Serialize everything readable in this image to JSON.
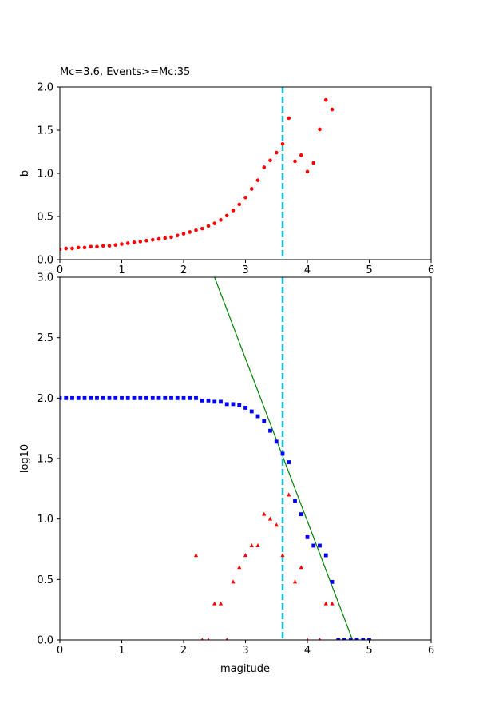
{
  "colors": {
    "axis": "#000000",
    "mc_line": "#17becf",
    "b_points": "#ff0000",
    "cum_points": "#0000ff",
    "noncum_points": "#ff0000",
    "fit_line": "#008000"
  },
  "chart_data": [
    {
      "type": "scatter",
      "title": "Mc=3.6, Events>=Mc:35",
      "xlabel": "",
      "ylabel": "b",
      "xlim": [
        0,
        6
      ],
      "ylim": [
        0,
        2
      ],
      "xticks": [
        "0",
        "1",
        "2",
        "3",
        "4",
        "5",
        "6"
      ],
      "yticks": [
        "0.0",
        "0.5",
        "1.0",
        "1.5",
        "2.0"
      ],
      "mc_line_x": 3.6,
      "series": [
        {
          "marker": "circle",
          "x": [
            0.0,
            0.1,
            0.2,
            0.3,
            0.4,
            0.5,
            0.6,
            0.7,
            0.8,
            0.9,
            1.0,
            1.1,
            1.2,
            1.3,
            1.4,
            1.5,
            1.6,
            1.7,
            1.8,
            1.9,
            2.0,
            2.1,
            2.2,
            2.3,
            2.4,
            2.5,
            2.6,
            2.7,
            2.8,
            2.9,
            3.0,
            3.1,
            3.2,
            3.3,
            3.4,
            3.5,
            3.6,
            3.7,
            3.8,
            3.9,
            4.0,
            4.1,
            4.2,
            4.3,
            4.4
          ],
          "y": [
            0.12,
            0.13,
            0.13,
            0.14,
            0.14,
            0.15,
            0.15,
            0.16,
            0.16,
            0.17,
            0.18,
            0.19,
            0.2,
            0.21,
            0.22,
            0.23,
            0.24,
            0.25,
            0.26,
            0.28,
            0.3,
            0.32,
            0.34,
            0.36,
            0.39,
            0.42,
            0.46,
            0.51,
            0.57,
            0.64,
            0.72,
            0.82,
            0.92,
            1.07,
            1.15,
            1.24,
            1.34,
            1.64,
            1.14,
            1.21,
            1.02,
            1.12,
            1.51,
            1.85,
            1.74
          ]
        }
      ]
    },
    {
      "type": "scatter",
      "title": "",
      "xlabel": "magitude",
      "ylabel": "log10",
      "xlim": [
        0,
        6
      ],
      "ylim": [
        0,
        3
      ],
      "xticks": [
        "0",
        "1",
        "2",
        "3",
        "4",
        "5",
        "6"
      ],
      "yticks": [
        "0.0",
        "0.5",
        "1.0",
        "1.5",
        "2.0",
        "2.5",
        "3.0"
      ],
      "mc_line_x": 3.6,
      "fit_line": {
        "x": [
          2.5,
          4.73
        ],
        "y": [
          3.0,
          0.0
        ]
      },
      "series": [
        {
          "marker": "square",
          "x": [
            0.0,
            0.1,
            0.2,
            0.3,
            0.4,
            0.5,
            0.6,
            0.7,
            0.8,
            0.9,
            1.0,
            1.1,
            1.2,
            1.3,
            1.4,
            1.5,
            1.6,
            1.7,
            1.8,
            1.9,
            2.0,
            2.1,
            2.2,
            2.3,
            2.4,
            2.5,
            2.6,
            2.7,
            2.8,
            2.9,
            3.0,
            3.1,
            3.2,
            3.3,
            3.4,
            3.5,
            3.6,
            3.7,
            3.8,
            3.9,
            4.0,
            4.1,
            4.2,
            4.3,
            4.4,
            4.5,
            4.6,
            4.7,
            4.8,
            4.9,
            5.0
          ],
          "y": [
            2.0,
            2.0,
            2.0,
            2.0,
            2.0,
            2.0,
            2.0,
            2.0,
            2.0,
            2.0,
            2.0,
            2.0,
            2.0,
            2.0,
            2.0,
            2.0,
            2.0,
            2.0,
            2.0,
            2.0,
            2.0,
            2.0,
            2.0,
            1.98,
            1.98,
            1.97,
            1.97,
            1.95,
            1.95,
            1.94,
            1.92,
            1.89,
            1.85,
            1.81,
            1.73,
            1.64,
            1.54,
            1.47,
            1.15,
            1.04,
            0.85,
            0.78,
            0.78,
            0.7,
            0.48,
            0.0,
            0.0,
            0.0,
            0.0,
            0.0,
            0.0
          ]
        },
        {
          "marker": "triangle",
          "x": [
            2.2,
            2.3,
            2.4,
            2.5,
            2.6,
            2.7,
            2.8,
            2.9,
            3.0,
            3.1,
            3.2,
            3.3,
            3.4,
            3.5,
            3.6,
            3.7,
            3.8,
            3.9,
            4.0,
            4.2,
            4.3,
            4.4
          ],
          "y": [
            0.7,
            0.0,
            0.0,
            0.3,
            0.3,
            0.0,
            0.48,
            0.6,
            0.7,
            0.78,
            0.78,
            1.04,
            1.0,
            0.95,
            0.7,
            1.2,
            0.48,
            0.6,
            0.0,
            0.0,
            0.3,
            0.3
          ]
        }
      ]
    }
  ]
}
